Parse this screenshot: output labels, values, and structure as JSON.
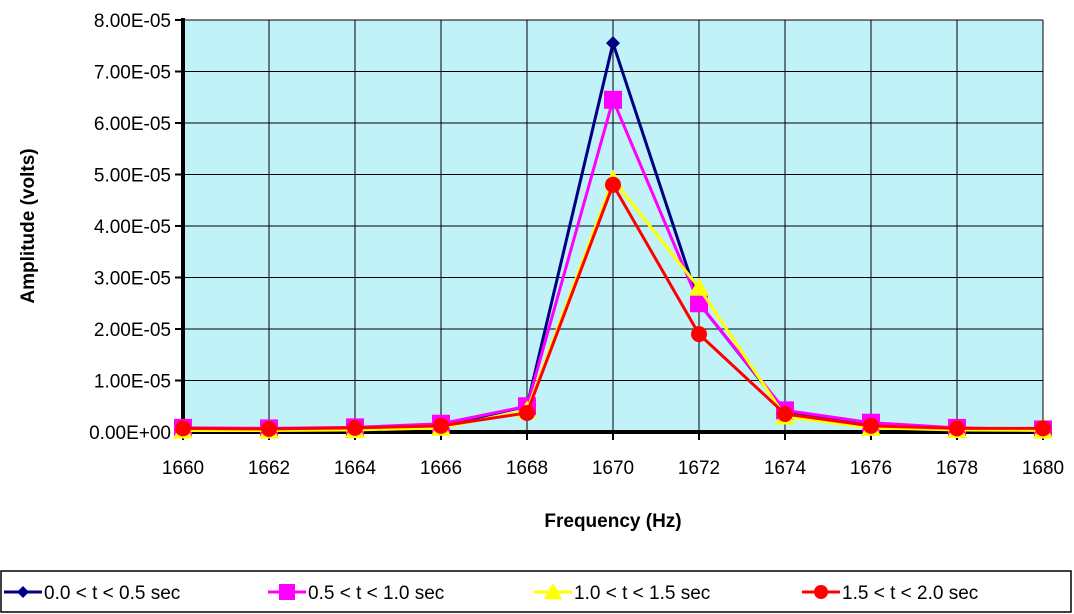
{
  "colors": {
    "plot_background": "#c0f2f8",
    "gridline": "#000000",
    "axis": "#000000"
  },
  "chart_data": {
    "type": "line",
    "title": "",
    "xlabel": "Frequency (Hz)",
    "ylabel": "Amplitude (volts)",
    "x": [
      1660,
      1662,
      1664,
      1666,
      1668,
      1670,
      1672,
      1674,
      1676,
      1678,
      1680
    ],
    "x_tick_labels": [
      "1660",
      "1662",
      "1664",
      "1666",
      "1668",
      "1670",
      "1672",
      "1674",
      "1676",
      "1678",
      "1680"
    ],
    "xlim": [
      1660,
      1680
    ],
    "ylim": [
      0,
      8e-05
    ],
    "y_ticks": [
      0,
      1e-05,
      2e-05,
      3e-05,
      4e-05,
      5e-05,
      6e-05,
      7e-05,
      8e-05
    ],
    "y_tick_labels": [
      "0.00E+00",
      "1.00E-05",
      "2.00E-05",
      "3.00E-05",
      "4.00E-05",
      "5.00E-05",
      "6.00E-05",
      "7.00E-05",
      "8.00E-05"
    ],
    "grid": true,
    "legend_position": "bottom",
    "series": [
      {
        "name": "0.0 < t < 0.5 sec",
        "color": "#000080",
        "marker": "diamond",
        "values": [
          5e-07,
          5e-07,
          8e-07,
          1.2e-06,
          5e-06,
          7.55e-05,
          2.5e-05,
          4e-06,
          1.5e-06,
          7e-07,
          5e-07
        ]
      },
      {
        "name": "0.5 < t < 1.0 sec",
        "color": "#ff00ff",
        "marker": "square",
        "values": [
          8e-07,
          7e-07,
          9e-07,
          1.6e-06,
          5e-06,
          6.45e-05,
          2.5e-05,
          4.2e-06,
          1.8e-06,
          8e-07,
          5e-07
        ]
      },
      {
        "name": "1.0 < t < 1.5 sec",
        "color": "#ffff00",
        "marker": "triangle",
        "values": [
          3e-07,
          3e-07,
          4e-07,
          8e-07,
          4.2e-06,
          4.9e-05,
          2.8e-05,
          3e-06,
          8e-07,
          4e-07,
          3e-07
        ]
      },
      {
        "name": "1.5 < t < 2.0 sec",
        "color": "#ff0000",
        "marker": "circle",
        "values": [
          7e-07,
          6e-07,
          8e-07,
          1.2e-06,
          3.7e-06,
          4.8e-05,
          1.9e-05,
          3.5e-06,
          1.2e-06,
          7e-07,
          7e-07
        ]
      }
    ]
  }
}
